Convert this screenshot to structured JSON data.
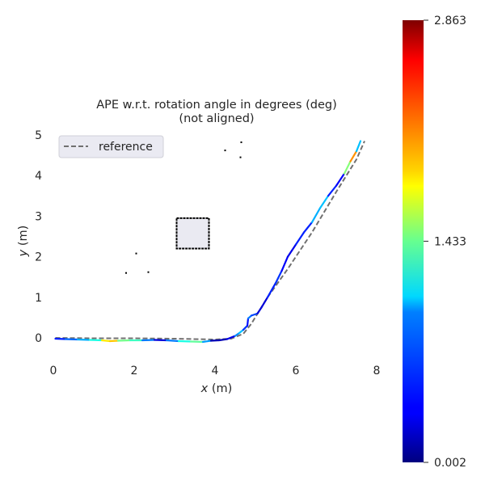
{
  "chart_data": {
    "type": "line",
    "title": "APE w.r.t. rotation angle in degrees (deg)",
    "subtitle": "(not aligned)",
    "xlabel": "x (m)",
    "ylabel": "y (m)",
    "xlabel_var": "x",
    "xlabel_unit": " (m)",
    "ylabel_var": "y",
    "ylabel_unit": " (m)",
    "xlim": [
      0,
      8
    ],
    "ylim": [
      -0.5,
      5.3
    ],
    "xticks": [
      "0",
      "2",
      "4",
      "6",
      "8"
    ],
    "yticks": [
      "0",
      "1",
      "2",
      "3",
      "4",
      "5"
    ],
    "grid": false,
    "legend": {
      "position": "top-left",
      "entries": [
        "reference"
      ]
    },
    "colorbar": {
      "colormap": "jet",
      "min": 0.002,
      "max": 2.863,
      "ticks": [
        "2.863",
        "1.433",
        "0.002"
      ]
    },
    "series": [
      {
        "name": "reference",
        "style": "dashed",
        "color": "#707070",
        "x": [
          0.05,
          1.0,
          2.0,
          3.0,
          4.0,
          4.4,
          4.7,
          4.9,
          5.3,
          5.8,
          6.4,
          7.0,
          7.5,
          7.7
        ],
        "y": [
          0.0,
          -0.01,
          -0.01,
          -0.02,
          -0.04,
          -0.02,
          0.1,
          0.35,
          1.0,
          1.7,
          2.6,
          3.6,
          4.4,
          4.85
        ]
      },
      {
        "name": "",
        "style": "solid",
        "colored_by": "APE",
        "x": [
          0.05,
          0.3,
          0.6,
          0.9,
          1.2,
          1.4,
          1.6,
          1.9,
          2.2,
          2.5,
          2.8,
          3.1,
          3.4,
          3.7,
          3.9,
          4.1,
          4.3,
          4.5,
          4.6,
          4.7,
          4.8,
          4.82,
          4.9,
          5.05,
          5.15,
          5.3,
          5.5,
          5.65,
          5.8,
          6.0,
          6.2,
          6.4,
          6.6,
          6.8,
          7.0,
          7.2,
          7.35,
          7.5,
          7.6
        ],
        "y": [
          -0.02,
          -0.03,
          -0.04,
          -0.05,
          -0.06,
          -0.08,
          -0.07,
          -0.06,
          -0.06,
          -0.05,
          -0.06,
          -0.08,
          -0.09,
          -0.1,
          -0.07,
          -0.06,
          -0.03,
          0.05,
          0.12,
          0.2,
          0.3,
          0.48,
          0.55,
          0.6,
          0.75,
          1.0,
          1.35,
          1.65,
          2.0,
          2.3,
          2.6,
          2.85,
          3.2,
          3.5,
          3.75,
          4.05,
          4.35,
          4.6,
          4.85
        ],
        "error": [
          0.3,
          0.6,
          0.7,
          1.0,
          1.3,
          2.4,
          1.5,
          1.3,
          1.2,
          0.2,
          0.3,
          1.1,
          1.2,
          1.5,
          0.1,
          0.2,
          0.1,
          0.5,
          1.0,
          0.8,
          0.2,
          0.6,
          0.8,
          0.3,
          0.2,
          0.3,
          0.6,
          0.4,
          0.3,
          0.3,
          0.6,
          0.3,
          1.4,
          0.4,
          0.5,
          0.2,
          2.7,
          1.5,
          0.3
        ]
      }
    ],
    "map_obstacle": {
      "rect": {
        "x": [
          3.05,
          3.85
        ],
        "y": [
          2.2,
          2.95
        ]
      },
      "points": [
        [
          4.25,
          4.62
        ],
        [
          4.65,
          4.82
        ],
        [
          4.63,
          4.45
        ],
        [
          2.05,
          2.08
        ],
        [
          1.8,
          1.6
        ],
        [
          2.35,
          1.62
        ]
      ]
    }
  }
}
